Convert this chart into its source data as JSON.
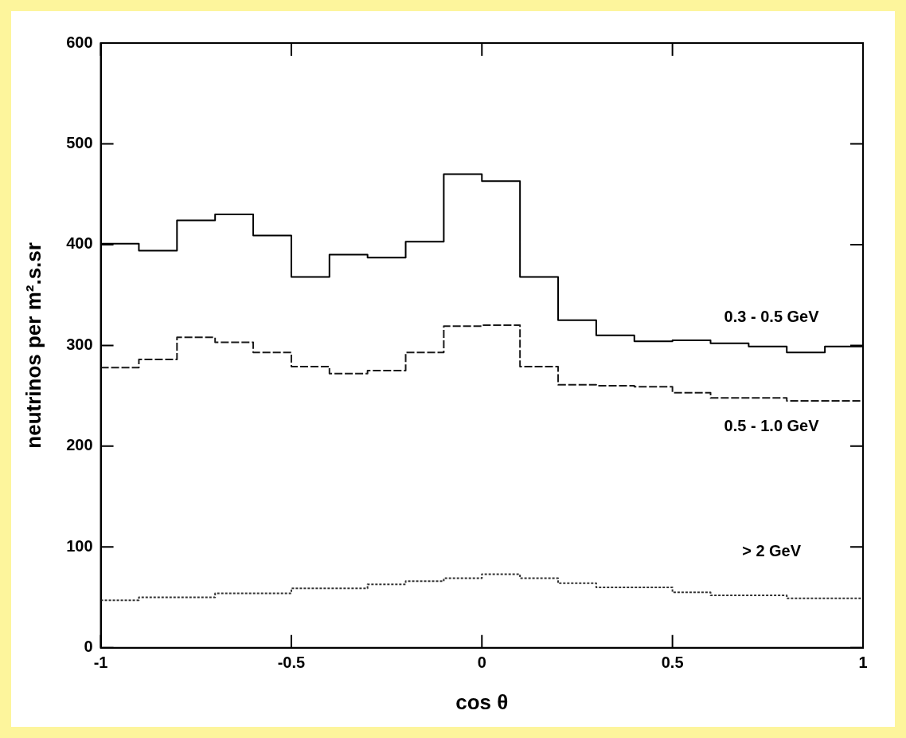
{
  "chart_data": {
    "type": "histogram",
    "xlabel": "cos θ",
    "ylabel": "neutrinos per m².s.sr",
    "bins": [
      -1,
      -0.9,
      -0.8,
      -0.7,
      -0.6,
      -0.5,
      -0.4,
      -0.3,
      -0.2,
      -0.1,
      0,
      0.1,
      0.2,
      0.3,
      0.4,
      0.5,
      0.6,
      0.7,
      0.8,
      0.9,
      1
    ],
    "series": [
      {
        "name": "0.3 - 0.5 GeV",
        "color": "#000000",
        "line_style": "solid",
        "values": [
          401,
          394,
          424,
          430,
          409,
          368,
          390,
          387,
          403,
          470,
          463,
          368,
          325,
          310,
          304,
          305,
          302,
          299,
          293,
          299
        ]
      },
      {
        "name": "0.5 - 1.0 GeV",
        "color": "#1a1a1a",
        "line_style": "dashed",
        "values": [
          278,
          286,
          308,
          303,
          293,
          279,
          272,
          275,
          293,
          319,
          320,
          279,
          261,
          260,
          259,
          253,
          248,
          248,
          245,
          245
        ]
      },
      {
        "name": "> 2 GeV",
        "color": "#333333",
        "line_style": "dotted",
        "values": [
          47,
          50,
          50,
          54,
          54,
          59,
          59,
          63,
          66,
          69,
          73,
          69,
          64,
          60,
          60,
          55,
          52,
          52,
          49,
          49
        ]
      }
    ],
    "xlim": [
      -1,
      1
    ],
    "xticks": [
      -1,
      -0.5,
      0,
      0.5,
      1
    ],
    "ylim": [
      0,
      600
    ],
    "yticks": [
      0,
      100,
      200,
      300,
      400,
      500,
      600
    ],
    "grid": false,
    "legend": false
  }
}
